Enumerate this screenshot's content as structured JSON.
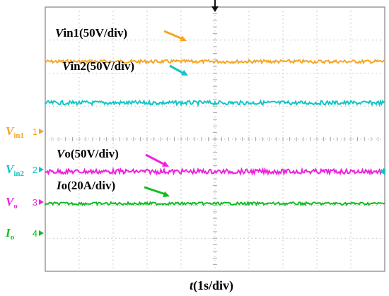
{
  "chart_data": {
    "type": "line",
    "title": "",
    "xlabel": {
      "var": "t",
      "rest": "(1s/div)"
    },
    "ylabel": "",
    "grid": true,
    "x_divisions": 10,
    "y_divisions": 8,
    "trigger_marker": "arrow-down",
    "series": [
      {
        "key": "vin1",
        "color": "#f5a623",
        "channel": {
          "number": "1",
          "var": "V",
          "sub": "in1"
        },
        "label": {
          "var": "V",
          "rest": "in1(50V/div)"
        },
        "level_div": 1.65,
        "noise": 0.05
      },
      {
        "key": "vin2",
        "color": "#13c4c4",
        "channel": {
          "number": "2",
          "var": "V",
          "sub": "in2"
        },
        "label": {
          "var": "V",
          "rest": "in2(50V/div)"
        },
        "level_div": 2.9,
        "noise": 0.06
      },
      {
        "key": "vo",
        "color": "#ee22dd",
        "channel": {
          "number": "3",
          "var": "V",
          "sub": "o"
        },
        "label": {
          "var": "V",
          "rest": "o(50V/div)"
        },
        "level_div": 4.98,
        "noise": 0.07
      },
      {
        "key": "io",
        "color": "#11bb22",
        "channel": {
          "number": "4",
          "var": "I",
          "sub": "o"
        },
        "label": {
          "var": "I",
          "rest": "o(20A/div)"
        },
        "level_div": 5.95,
        "noise": 0.04
      }
    ]
  }
}
